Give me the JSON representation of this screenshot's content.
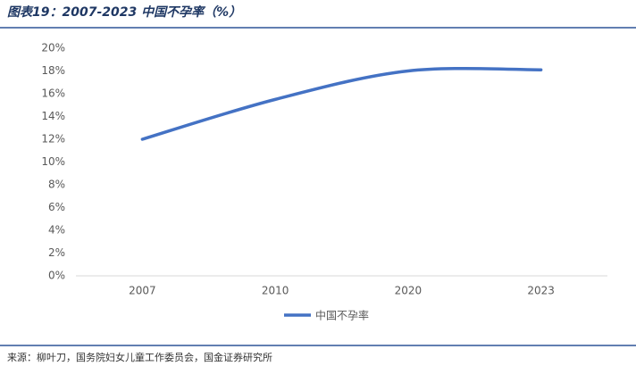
{
  "chart_data": {
    "type": "line",
    "title": "图表19：2007-2023 中国不孕率（%）",
    "categories": [
      "2007",
      "2010",
      "2020",
      "2023"
    ],
    "series": [
      {
        "name": "中国不孕率",
        "color": "#4472c4",
        "values": [
          12,
          15.5,
          18,
          18.1
        ]
      }
    ],
    "ylim": [
      0,
      20
    ],
    "yticks": [
      {
        "value": 0,
        "label": "0%"
      },
      {
        "value": 2,
        "label": "2%"
      },
      {
        "value": 4,
        "label": "4%"
      },
      {
        "value": 6,
        "label": "6%"
      },
      {
        "value": 8,
        "label": "8%"
      },
      {
        "value": 10,
        "label": "10%"
      },
      {
        "value": 12,
        "label": "12%"
      },
      {
        "value": 14,
        "label": "14%"
      },
      {
        "value": 16,
        "label": "16%"
      },
      {
        "value": 18,
        "label": "18%"
      },
      {
        "value": 20,
        "label": "20%"
      }
    ],
    "source": "来源：柳叶刀，国务院妇女儿童工作委员会，国金证券研究所"
  }
}
